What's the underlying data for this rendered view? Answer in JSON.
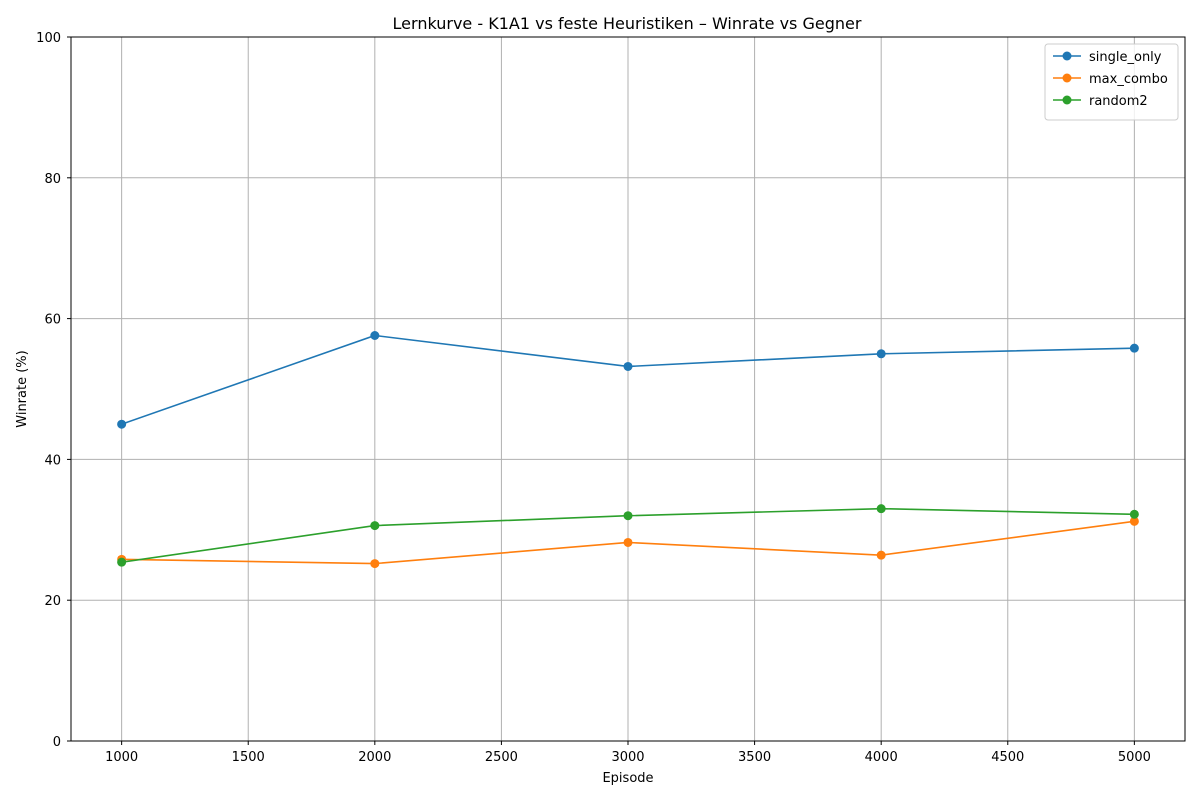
{
  "chart_data": {
    "type": "line",
    "title": "Lernkurve - K1A1 vs feste Heuristiken – Winrate vs Gegner",
    "xlabel": "Episode",
    "ylabel": "Winrate (%)",
    "x": [
      1000,
      2000,
      3000,
      4000,
      5000
    ],
    "xlim": [
      800,
      5200
    ],
    "ylim": [
      0,
      100
    ],
    "xticks": [
      1000,
      1500,
      2000,
      2500,
      3000,
      3500,
      4000,
      4500,
      5000
    ],
    "yticks": [
      0,
      20,
      40,
      60,
      80,
      100
    ],
    "grid": true,
    "legend_position": "top-right",
    "series": [
      {
        "name": "single_only",
        "color": "#1f77b4",
        "values": [
          45.0,
          57.6,
          53.2,
          55.0,
          55.8
        ]
      },
      {
        "name": "max_combo",
        "color": "#ff7f0e",
        "values": [
          25.8,
          25.2,
          28.2,
          26.4,
          31.2
        ]
      },
      {
        "name": "random2",
        "color": "#2ca02c",
        "values": [
          25.4,
          30.6,
          32.0,
          33.0,
          32.2
        ]
      }
    ]
  }
}
